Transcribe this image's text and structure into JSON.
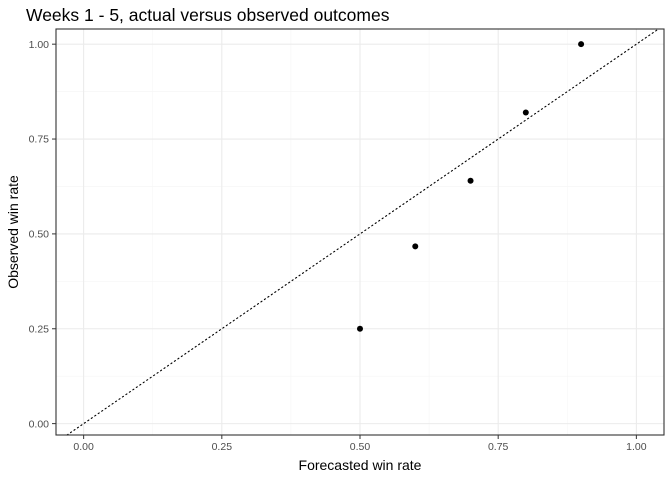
{
  "chart_data": {
    "type": "scatter",
    "title": "Weeks 1 - 5, actual versus observed outcomes",
    "xlabel": "Forecasted win rate",
    "ylabel": "Observed win rate",
    "xlim": [
      -0.05,
      1.05
    ],
    "ylim": [
      -0.03,
      1.04
    ],
    "x_ticks": [
      0.0,
      0.25,
      0.5,
      0.75,
      1.0
    ],
    "x_tick_labels": [
      "0.00",
      "0.25",
      "0.50",
      "0.75",
      "1.00"
    ],
    "y_ticks": [
      0.0,
      0.25,
      0.5,
      0.75,
      1.0
    ],
    "y_tick_labels": [
      "0.00",
      "0.25",
      "0.50",
      "0.75",
      "1.00"
    ],
    "grid": true,
    "reference_line": {
      "type": "identity",
      "style": "dotted",
      "slope": 1,
      "intercept": 0
    },
    "points": [
      {
        "x": 0.5,
        "y": 0.25
      },
      {
        "x": 0.6,
        "y": 0.467
      },
      {
        "x": 0.7,
        "y": 0.64
      },
      {
        "x": 0.8,
        "y": 0.82
      },
      {
        "x": 0.9,
        "y": 1.0
      }
    ],
    "colors": {
      "point": "#000000",
      "panel_border": "#333333",
      "grid_major": "#ebebeb",
      "grid_minor": "#f5f5f5",
      "tick_label": "#4d4d4d"
    }
  }
}
